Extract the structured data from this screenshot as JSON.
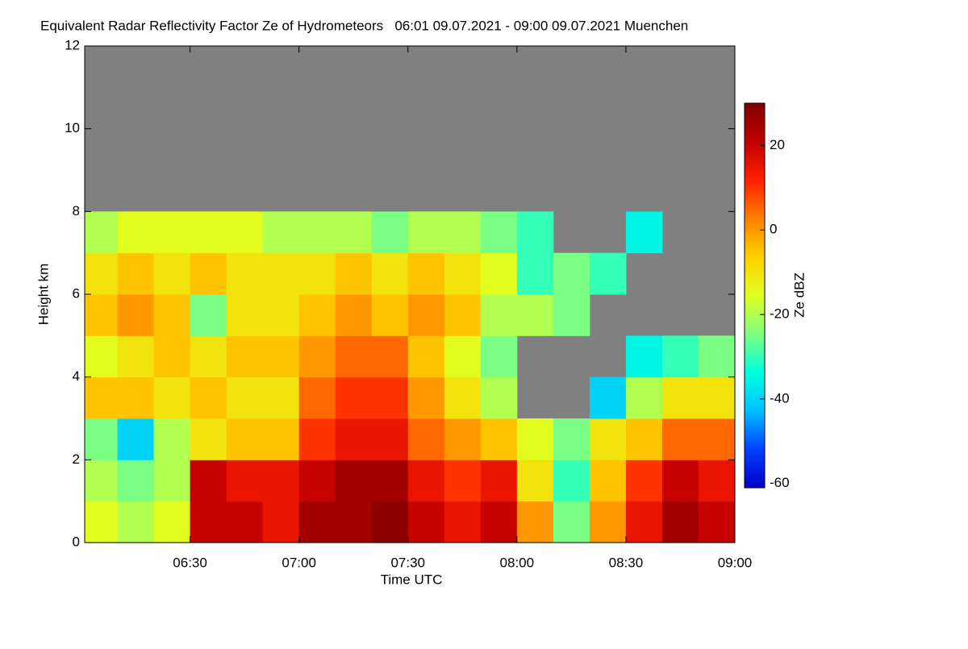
{
  "chart_data": {
    "type": "heatmap",
    "title": "Equivalent Radar Reflectivity Factor Ze of Hydrometeors   06:01 09.07.2021 - 09:00 09.07.2021 Muenchen",
    "x_label": "Time UTC",
    "y_label": "Height km",
    "colorbar_label": "Ze dBZ",
    "xbins": [
      "06:01",
      "06:10",
      "06:20",
      "06:30",
      "06:40",
      "06:50",
      "07:00",
      "07:10",
      "07:20",
      "07:30",
      "07:40",
      "07:50",
      "08:00",
      "08:10",
      "08:20",
      "08:30",
      "08:40",
      "08:50",
      "09:00"
    ],
    "ybins": [
      0,
      1,
      2,
      3,
      4,
      5,
      6,
      7,
      8,
      9
    ],
    "values": [
      [
        -15,
        -20,
        -15,
        20,
        20,
        15,
        25,
        25,
        28,
        20,
        15,
        20,
        0,
        -25,
        0,
        15,
        25,
        20
      ],
      [
        -20,
        -25,
        -20,
        20,
        15,
        15,
        20,
        25,
        25,
        15,
        10,
        15,
        -10,
        -30,
        -5,
        10,
        20,
        15
      ],
      [
        -25,
        -40,
        -20,
        -10,
        -5,
        -5,
        10,
        15,
        15,
        5,
        0,
        -5,
        -15,
        -25,
        -10,
        -5,
        5,
        5
      ],
      [
        -5,
        -5,
        -10,
        -5,
        -10,
        -10,
        5,
        10,
        10,
        0,
        -10,
        -20,
        null,
        null,
        -40,
        -20,
        -10,
        -10
      ],
      [
        -15,
        -10,
        -5,
        -10,
        -5,
        -5,
        0,
        5,
        5,
        -5,
        -15,
        -25,
        null,
        null,
        null,
        -35,
        -30,
        -25
      ],
      [
        -5,
        0,
        -5,
        -25,
        -10,
        -10,
        -5,
        0,
        -5,
        0,
        -5,
        -20,
        -20,
        -25,
        null,
        null,
        null,
        null
      ],
      [
        -10,
        -5,
        -10,
        -5,
        -10,
        -10,
        -10,
        -5,
        -10,
        -5,
        -10,
        -15,
        -30,
        -25,
        -30,
        null,
        null,
        null
      ],
      [
        -20,
        -15,
        -15,
        -15,
        -15,
        -20,
        -20,
        -20,
        -25,
        -20,
        -20,
        -25,
        -30,
        null,
        null,
        -35,
        null,
        null
      ],
      [
        null,
        null,
        null,
        null,
        null,
        null,
        null,
        null,
        null,
        null,
        null,
        null,
        null,
        null,
        null,
        null,
        null,
        null
      ]
    ],
    "xlim": [
      "06:01",
      "09:00"
    ],
    "xticks": [
      "06:30",
      "07:00",
      "07:30",
      "08:00",
      "08:30",
      "09:00"
    ],
    "ylim": [
      0,
      12
    ],
    "yticks": [
      0,
      2,
      4,
      6,
      8,
      10,
      12
    ],
    "clim": [
      -61,
      30
    ],
    "cticks": [
      20,
      0,
      -20,
      -40,
      -60
    ],
    "colormap": [
      "#0000c8",
      "#0040ff",
      "#00c0ff",
      "#00ffe0",
      "#80ff80",
      "#e0ff20",
      "#ffd000",
      "#ff8000",
      "#ff2000",
      "#c00000",
      "#800000"
    ],
    "background": "#808080"
  }
}
